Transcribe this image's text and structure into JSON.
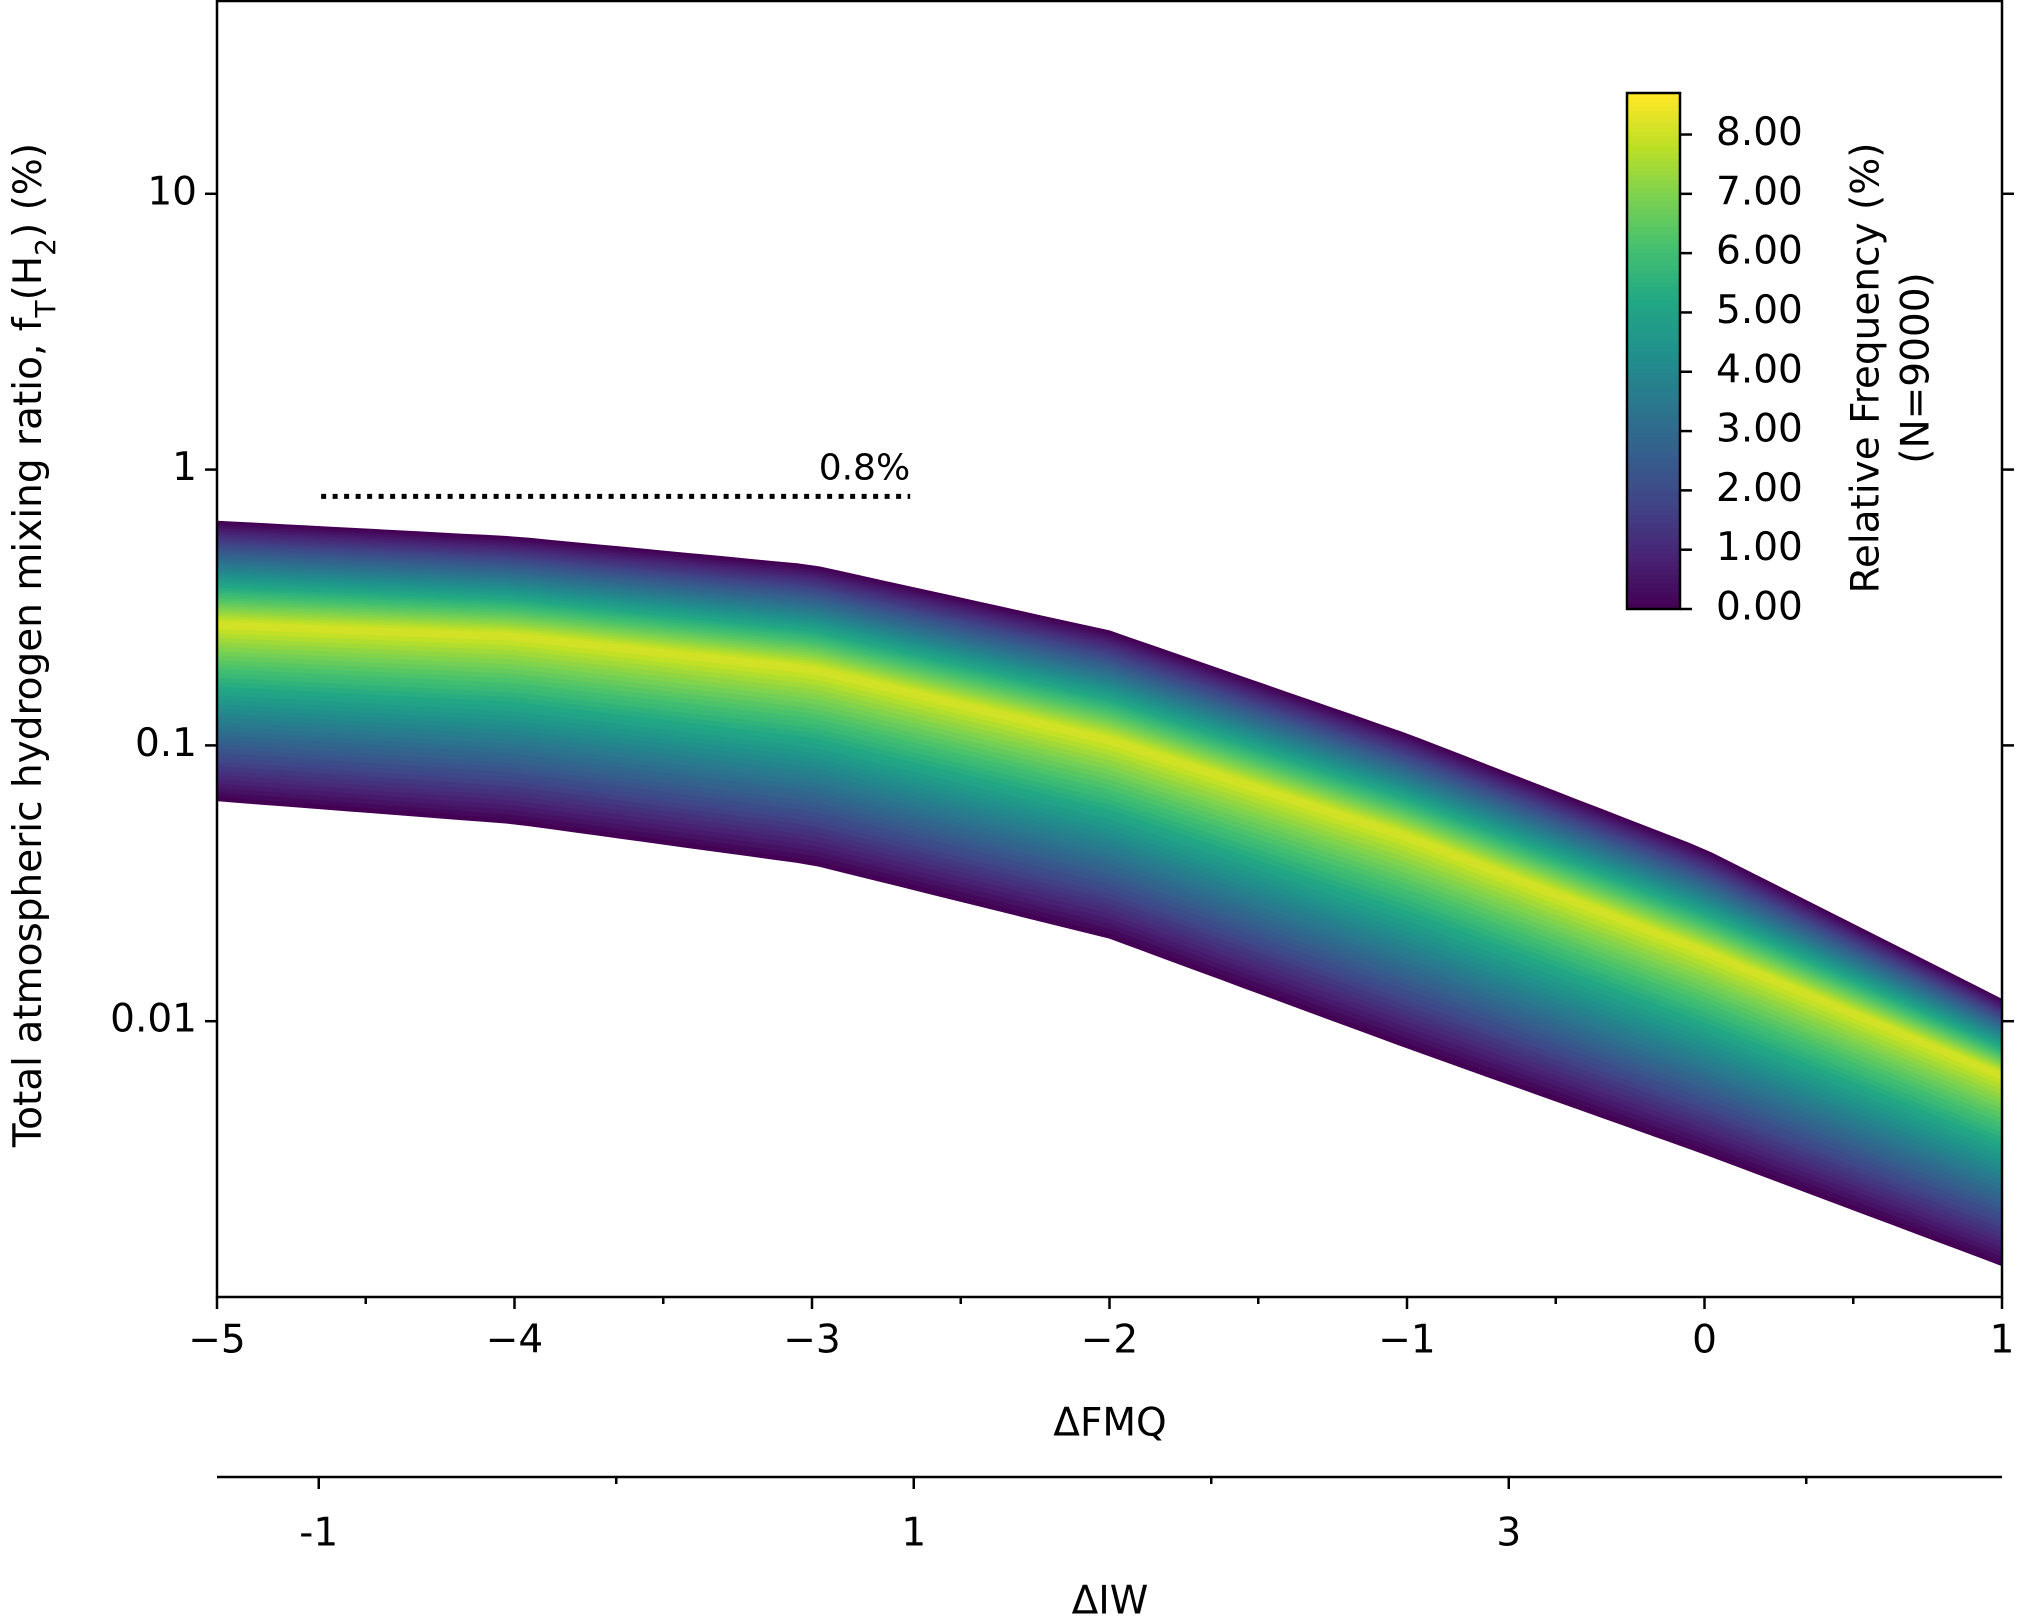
{
  "chart_data": {
    "type": "density_band",
    "x_label": "ΔFMQ",
    "y_label_parts": [
      "Total atmospheric hydrogen mixing ratio, f",
      "T",
      "(H",
      "2",
      ") (%)"
    ],
    "x": [
      -5,
      -4,
      -3,
      -2,
      -1,
      0,
      1
    ],
    "upper": [
      0.65,
      0.57,
      0.45,
      0.26,
      0.11,
      0.042,
      0.012
    ],
    "ridge": [
      0.275,
      0.25,
      0.19,
      0.105,
      0.047,
      0.018,
      0.0064
    ],
    "lower": [
      0.063,
      0.052,
      0.037,
      0.02,
      0.008,
      0.0033,
      0.0013
    ],
    "xlim": [
      -5,
      1
    ],
    "xticks": [
      {
        "value": -5,
        "label": "−5"
      },
      {
        "value": -4,
        "label": "−4"
      },
      {
        "value": -3,
        "label": "−3"
      },
      {
        "value": -2,
        "label": "−2"
      },
      {
        "value": -1,
        "label": "−1"
      },
      0,
      1
    ],
    "xminorticks": [
      -4.5,
      -3.5,
      -2.5,
      -1.5,
      -0.5,
      0.5
    ],
    "ylim": [
      0.001,
      50
    ],
    "yticks": [
      0.01,
      0.1,
      1,
      10
    ],
    "log_y": true,
    "colorbar": {
      "label_lines": [
        "Relative Frequency (%)",
        "(N=9000)"
      ],
      "lim": [
        0,
        8.7
      ],
      "ticks": [
        {
          "value": 0,
          "label": "0.00"
        },
        {
          "value": 1,
          "label": "1.00"
        },
        {
          "value": 2,
          "label": "2.00"
        },
        {
          "value": 3,
          "label": "3.00"
        },
        {
          "value": 4,
          "label": "4.00"
        },
        {
          "value": 5,
          "label": "5.00"
        },
        {
          "value": 6,
          "label": "6.00"
        },
        {
          "value": 7,
          "label": "7.00"
        },
        {
          "value": 8,
          "label": "8.00"
        }
      ],
      "colors": [
        "#440154",
        "#482475",
        "#414487",
        "#355f8d",
        "#2a788e",
        "#21918c",
        "#22a884",
        "#44bf70",
        "#7ad151",
        "#bddf26",
        "#fde725"
      ]
    },
    "secondary_x": {
      "label": "ΔIW",
      "lim": [
        -1.342,
        4.658
      ],
      "ticks": [
        {
          "value": -1,
          "label": "-1"
        },
        1,
        3
      ],
      "minorticks": [
        0,
        2,
        4
      ]
    },
    "reference_line": {
      "y": 0.8,
      "x": [
        -4.65,
        -2.67
      ],
      "label": "0.8%"
    }
  }
}
